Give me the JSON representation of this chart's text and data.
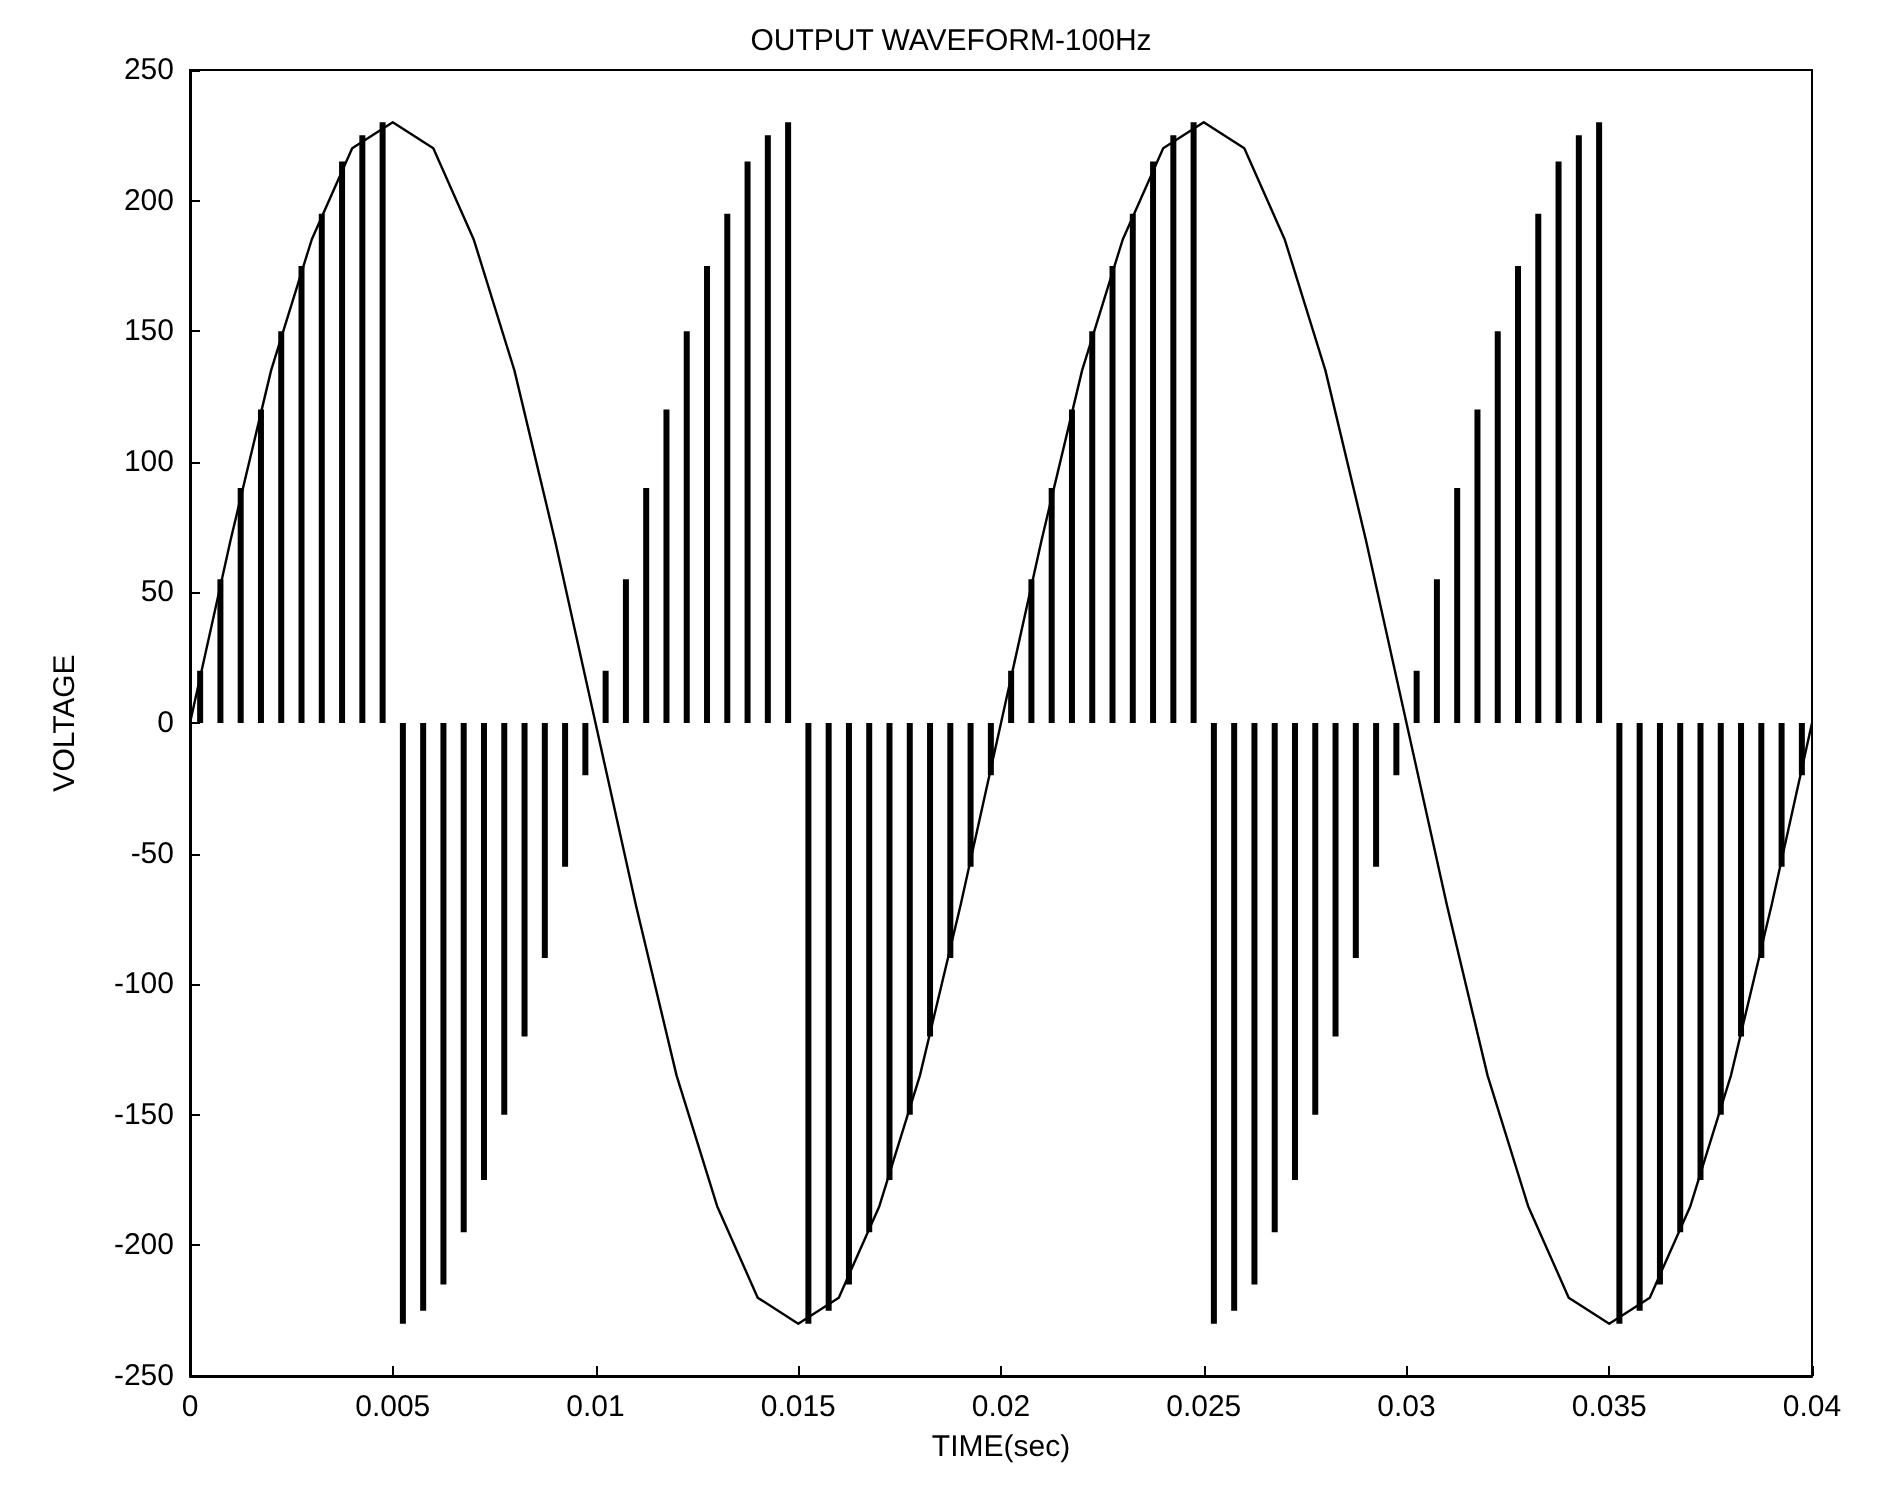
{
  "chart_data": {
    "type": "line",
    "title": "OUTPUT WAVEFORM-100Hz",
    "xlabel": "TIME(sec)",
    "ylabel": "VOLTAGE",
    "xlim": [
      0,
      0.04
    ],
    "xticks": [
      0,
      0.005,
      0.01,
      0.015,
      0.02,
      0.025,
      0.03,
      0.035,
      0.04
    ],
    "ylim": [
      -250,
      250
    ],
    "yticks": [
      -250,
      -200,
      -150,
      -100,
      -50,
      0,
      50,
      100,
      150,
      200,
      250
    ],
    "grid": false,
    "marker": "none",
    "line_style": "solid",
    "series": [
      {
        "color": "#000000",
        "x": [
          0,
          0.001,
          0.002,
          0.003,
          0.004,
          0.005,
          0.006,
          0.007,
          0.008,
          0.009,
          0.01,
          0.011,
          0.012,
          0.013,
          0.014,
          0.015,
          0.016,
          0.017,
          0.018,
          0.019,
          0.02,
          0.021,
          0.022,
          0.023,
          0.024,
          0.025,
          0.026,
          0.027,
          0.028,
          0.029,
          0.03,
          0.031,
          0.032,
          0.033,
          0.034,
          0.035,
          0.036,
          0.037,
          0.038,
          0.039,
          0.04
        ],
        "values": [
          0,
          70,
          135,
          185,
          220,
          230,
          220,
          185,
          135,
          70,
          0,
          -70,
          -135,
          -185,
          -220,
          -230,
          -220,
          -185,
          -135,
          -70,
          0,
          70,
          135,
          185,
          220,
          230,
          220,
          185,
          135,
          70,
          0,
          -70,
          -135,
          -185,
          -220,
          -230,
          -220,
          -185,
          -135,
          -70,
          0
        ]
      },
      {
        "type": "bar",
        "color": "#000000",
        "x": [
          0.00025,
          0.00075,
          0.00125,
          0.00175,
          0.00225,
          0.00275,
          0.00325,
          0.00375,
          0.00425,
          0.00475,
          0.00525,
          0.00575,
          0.00625,
          0.00675,
          0.00725,
          0.00775,
          0.00825,
          0.00875,
          0.00925,
          0.00975,
          0.01025,
          0.01075,
          0.01125,
          0.01175,
          0.01225,
          0.01275,
          0.01325,
          0.01375,
          0.01425,
          0.01475,
          0.01525,
          0.01575,
          0.01625,
          0.01675,
          0.01725,
          0.01775,
          0.01825,
          0.01875,
          0.01925,
          0.01975,
          0.02025,
          0.02075,
          0.02125,
          0.02175,
          0.02225,
          0.02275,
          0.02325,
          0.02375,
          0.02425,
          0.02475,
          0.02525,
          0.02575,
          0.02625,
          0.02675,
          0.02725,
          0.02775,
          0.02825,
          0.02875,
          0.02925,
          0.02975,
          0.03025,
          0.03075,
          0.03125,
          0.03175,
          0.03225,
          0.03275,
          0.03325,
          0.03375,
          0.03425,
          0.03475,
          0.03525,
          0.03575,
          0.03625,
          0.03675,
          0.03725,
          0.03775,
          0.03825,
          0.03875,
          0.03925,
          0.03975
        ],
        "values": [
          20,
          55,
          90,
          120,
          150,
          175,
          195,
          215,
          225,
          230,
          -230,
          -225,
          -215,
          -195,
          -175,
          -150,
          -120,
          -90,
          -55,
          -20,
          20,
          55,
          90,
          120,
          150,
          175,
          195,
          215,
          225,
          230,
          -230,
          -225,
          -215,
          -195,
          -175,
          -150,
          -120,
          -90,
          -55,
          -20,
          20,
          55,
          90,
          120,
          150,
          175,
          195,
          215,
          225,
          230,
          -230,
          -225,
          -215,
          -195,
          -175,
          -150,
          -120,
          -90,
          -55,
          -20,
          20,
          55,
          90,
          120,
          150,
          175,
          195,
          215,
          225,
          230,
          -230,
          -225,
          -215,
          -195,
          -175,
          -150,
          -120,
          -90,
          -55,
          -20
        ]
      }
    ]
  }
}
